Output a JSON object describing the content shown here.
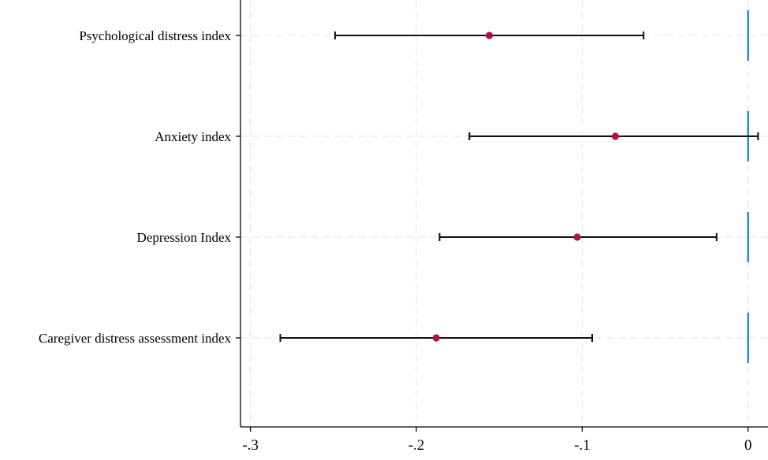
{
  "chart_data": {
    "type": "coefficient-plot",
    "title": "",
    "xlabel": "",
    "ylabel": "",
    "xlim": [
      -0.306,
      0.012
    ],
    "xticks": [
      -0.3,
      -0.2,
      -0.1,
      0
    ],
    "xtick_labels": [
      "-.3",
      "-.2",
      "-.1",
      "0"
    ],
    "grid": true,
    "categories": [
      "Psychological distress index",
      "Anxiety index",
      "Depression Index",
      "Caregiver distress assessment index"
    ],
    "series": [
      {
        "estimate": [
          -0.156,
          -0.08,
          -0.103,
          -0.188
        ],
        "ci_low": [
          -0.249,
          -0.168,
          -0.186,
          -0.282
        ],
        "ci_high": [
          -0.063,
          0.006,
          -0.019,
          -0.094
        ]
      }
    ],
    "reference_line": {
      "x": 0,
      "color": "#1f87e0"
    },
    "colors": {
      "marker": "#b0124a",
      "ci": "#111111",
      "grid": "#e6e6e6",
      "axis": "#000000"
    }
  }
}
